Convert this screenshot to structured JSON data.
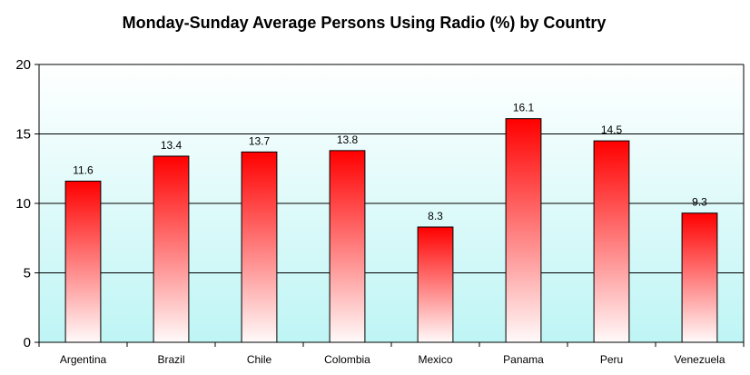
{
  "chart_data": {
    "type": "bar",
    "title": "Monday-Sunday Average Persons Using Radio (%) by Country",
    "xlabel": "",
    "ylabel": "",
    "categories": [
      "Argentina",
      "Brazil",
      "Chile",
      "Colombia",
      "Mexico",
      "Panama",
      "Peru",
      "Venezuela"
    ],
    "values": [
      11.6,
      13.4,
      13.7,
      13.8,
      8.3,
      16.1,
      14.5,
      9.3
    ],
    "data_labels": [
      "11.6",
      "13.4",
      "13.7",
      "13.8",
      "8.3",
      "16.1",
      "14.5",
      "9.3"
    ],
    "ylim": [
      0,
      20
    ],
    "yticks": [
      0,
      5,
      10,
      15,
      20
    ],
    "grid": true,
    "legend": "none",
    "colors": {
      "bar_top": "#ff0000",
      "bar_bottom": "#ffffff",
      "plot_bg_top": "#ffffff",
      "plot_bg_bottom": "#bff5f5",
      "gridline": "#000000"
    }
  }
}
